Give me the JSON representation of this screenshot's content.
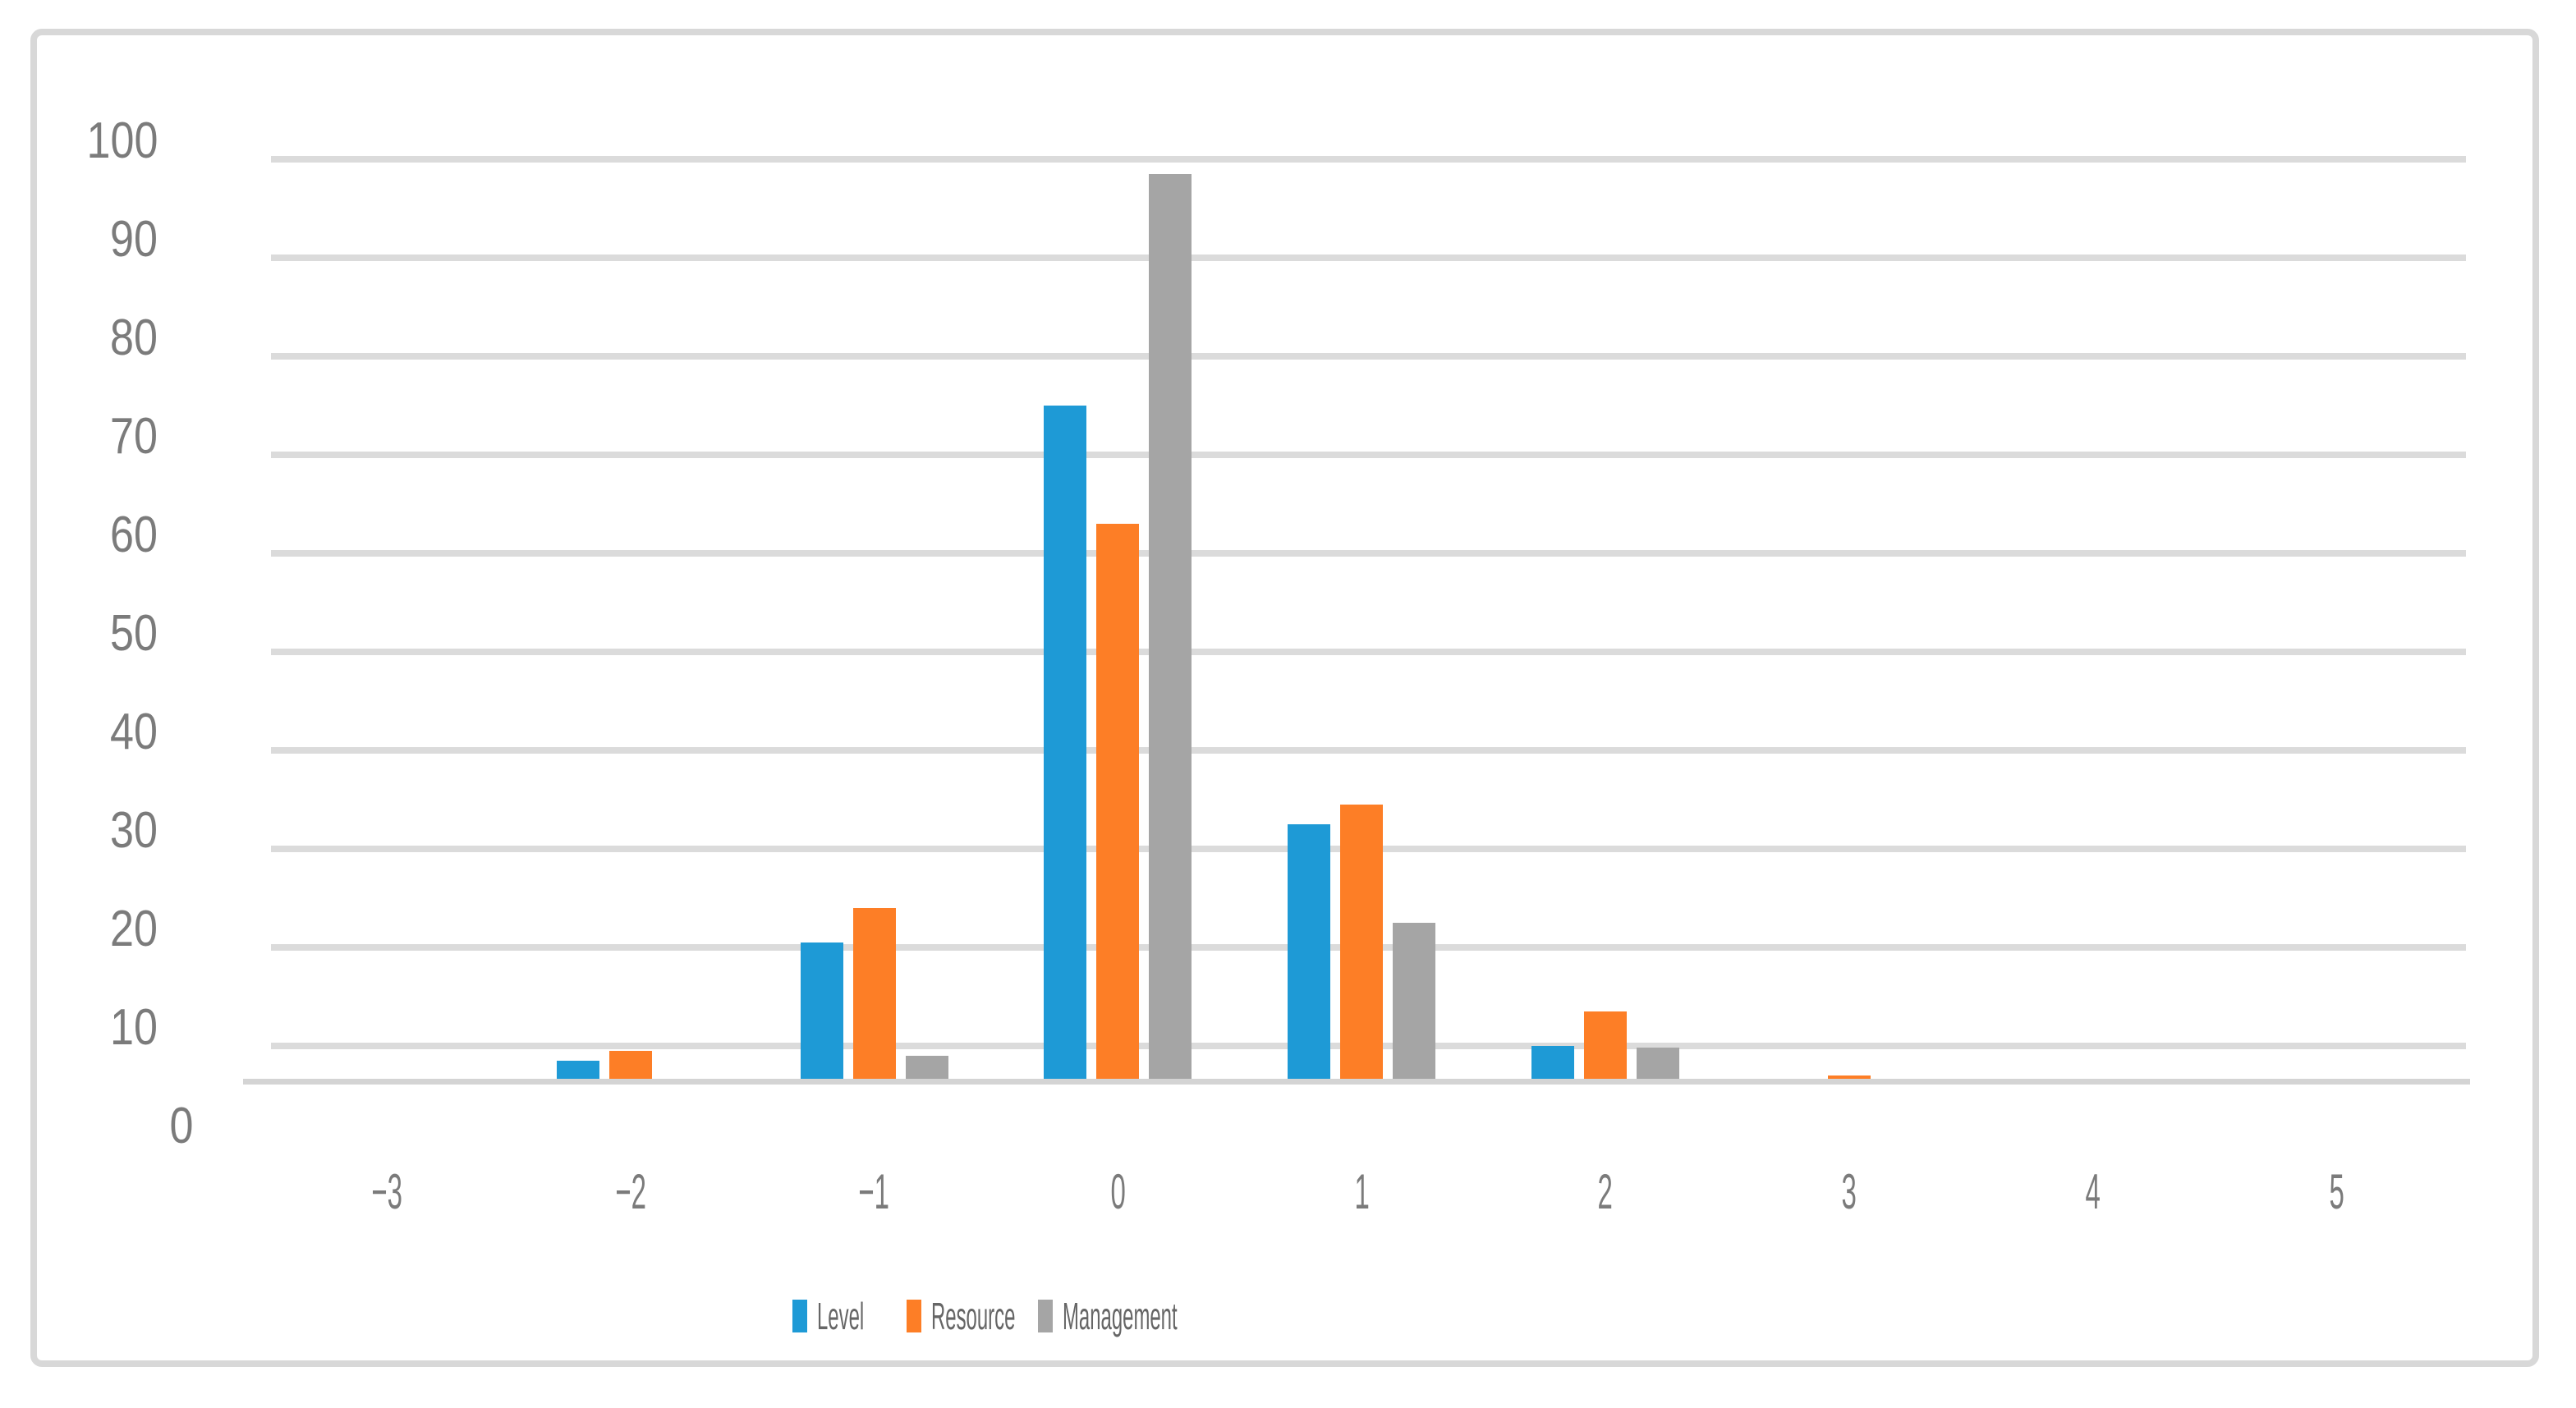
{
  "figure": {
    "background": "#ffffff",
    "border_color": "#D8D8D8"
  },
  "chart_data": {
    "type": "bar",
    "title": "",
    "xlabel": "",
    "ylabel": "",
    "categories": [
      -3,
      -2,
      -1,
      0,
      1,
      2,
      3,
      4,
      5
    ],
    "x_tick_labels": [
      "−3",
      "−2",
      "−1",
      "0",
      "1",
      "2",
      "3",
      "4",
      "5"
    ],
    "series": [
      {
        "name": "Level",
        "color": "#1E9AD6",
        "values": [
          0,
          8.5,
          20.5,
          75,
          32.5,
          10,
          0,
          0,
          0
        ]
      },
      {
        "name": "Resource",
        "color": "#FD7E26",
        "values": [
          0,
          9.5,
          24,
          63,
          34.5,
          13.5,
          7,
          0,
          0
        ]
      },
      {
        "name": "Management",
        "color": "#A5A5A5",
        "values": [
          0,
          0,
          9,
          98.5,
          22.5,
          9.8,
          0,
          0,
          0
        ]
      }
    ],
    "ylim": [
      0,
      100
    ],
    "y_ticks": [
      0,
      10,
      20,
      30,
      40,
      50,
      60,
      70,
      80,
      90,
      100
    ],
    "y_tick_labels": [
      "0",
      "10",
      "20",
      "30",
      "40",
      "50",
      "60",
      "70",
      "80",
      "90",
      "100"
    ],
    "grid": "horizontal",
    "legend_position": "bottom",
    "note": "Bar bottoms are clipped by an elevated baseline: values below ~6.7 are not visible on the original figure"
  },
  "legend": {
    "items": [
      {
        "label": "Level",
        "color": "#1E9AD6"
      },
      {
        "label": "Resource",
        "color": "#FD7E26"
      },
      {
        "label": "Management",
        "color": "#A5A5A5"
      }
    ]
  }
}
